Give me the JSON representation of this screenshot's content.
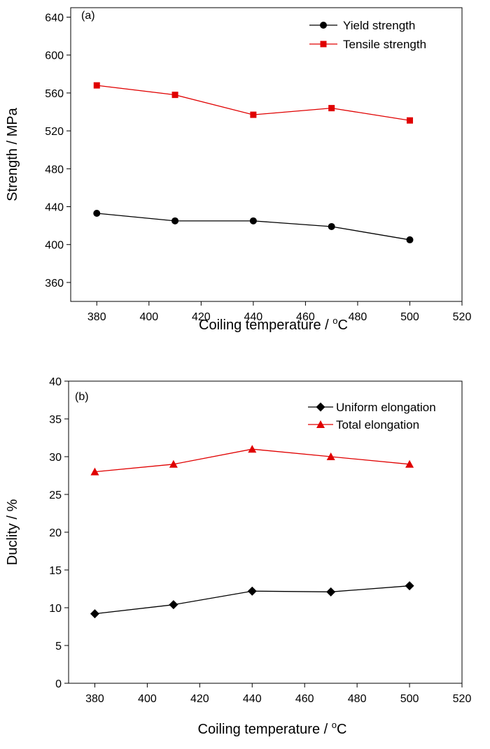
{
  "chart_data": [
    {
      "panel_label": "(a)",
      "type": "line",
      "xlabel": "Coiling temperature / ",
      "xlabel_unit": "°C",
      "ylabel": "Strength / MPa",
      "xlim": [
        370,
        520
      ],
      "ylim": [
        340,
        650
      ],
      "xticks": [
        380,
        400,
        420,
        440,
        460,
        480,
        500,
        520
      ],
      "yticks": [
        360,
        400,
        440,
        480,
        520,
        560,
        600,
        640
      ],
      "x": [
        380,
        410,
        440,
        470,
        500
      ],
      "legend_position": "top-right",
      "series": [
        {
          "name": "Yield strength",
          "marker": "circle",
          "color": "#000000",
          "values": [
            433,
            425,
            425,
            419,
            405
          ]
        },
        {
          "name": "Tensile strength",
          "marker": "square",
          "color": "#e00000",
          "values": [
            568,
            558,
            537,
            544,
            531
          ]
        }
      ]
    },
    {
      "panel_label": "(b)",
      "type": "line",
      "xlabel": "Coiling temperature / ",
      "xlabel_unit": "°C",
      "ylabel": "Duclity / %",
      "xlim": [
        370,
        520
      ],
      "ylim": [
        0,
        40
      ],
      "xticks": [
        380,
        400,
        420,
        440,
        460,
        480,
        500,
        520
      ],
      "yticks": [
        0,
        5,
        10,
        15,
        20,
        25,
        30,
        35,
        40
      ],
      "x": [
        380,
        410,
        440,
        470,
        500
      ],
      "legend_position": "top-right",
      "series": [
        {
          "name": "Uniform elongation",
          "marker": "diamond",
          "color": "#000000",
          "values": [
            9.2,
            10.4,
            12.2,
            12.1,
            12.9
          ]
        },
        {
          "name": "Total  elongation",
          "marker": "triangle",
          "color": "#e00000",
          "values": [
            28,
            29,
            31,
            30,
            29
          ]
        }
      ]
    }
  ]
}
